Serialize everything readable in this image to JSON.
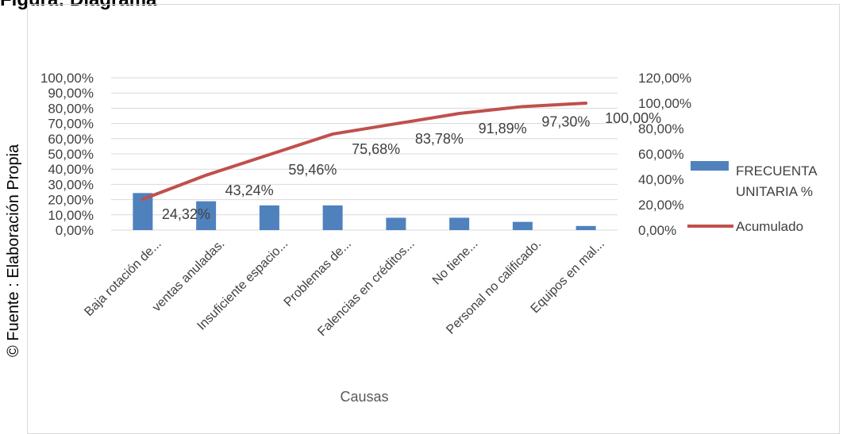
{
  "page": {
    "title": "Figura: Diagrama",
    "source_label": "© Fuente : Elaboración Propia"
  },
  "chart_data": {
    "type": "bar+line (pareto)",
    "categories": [
      "Baja rotación de...",
      "ventas anuladas.",
      "Insuficiente espacio...",
      "Problemas de...",
      "Falencias en créditos...",
      "No tiene...",
      "Personal no calificado.",
      "Equipos en mal..."
    ],
    "xlabel": "Causas",
    "series": [
      {
        "name": "FRECUENTA UNITARIA %",
        "kind": "bar",
        "axis": "left",
        "color": "#4f81bd",
        "values": [
          24.32,
          18.92,
          16.22,
          16.22,
          8.11,
          8.11,
          5.41,
          2.7
        ]
      },
      {
        "name": "Acumulado",
        "kind": "line",
        "axis": "right",
        "color": "#c0504d",
        "values": [
          24.32,
          43.24,
          59.46,
          75.68,
          83.78,
          91.89,
          97.3,
          100.0
        ],
        "data_labels": [
          "24,32%",
          "43,24%",
          "59,46%",
          "75,68%",
          "83,78%",
          "91,89%",
          "97,30%",
          "100,00%"
        ]
      }
    ],
    "y_left": {
      "ylim": [
        0,
        100
      ],
      "ticks": [
        "0,00%",
        "10,00%",
        "20,00%",
        "30,00%",
        "40,00%",
        "50,00%",
        "60,00%",
        "70,00%",
        "80,00%",
        "90,00%",
        "100,00%"
      ]
    },
    "y_right": {
      "ylim": [
        0,
        120
      ],
      "ticks": [
        "0,00%",
        "20,00%",
        "40,00%",
        "60,00%",
        "80,00%",
        "100,00%",
        "120,00%"
      ]
    },
    "grid": true,
    "legend_position": "right"
  }
}
